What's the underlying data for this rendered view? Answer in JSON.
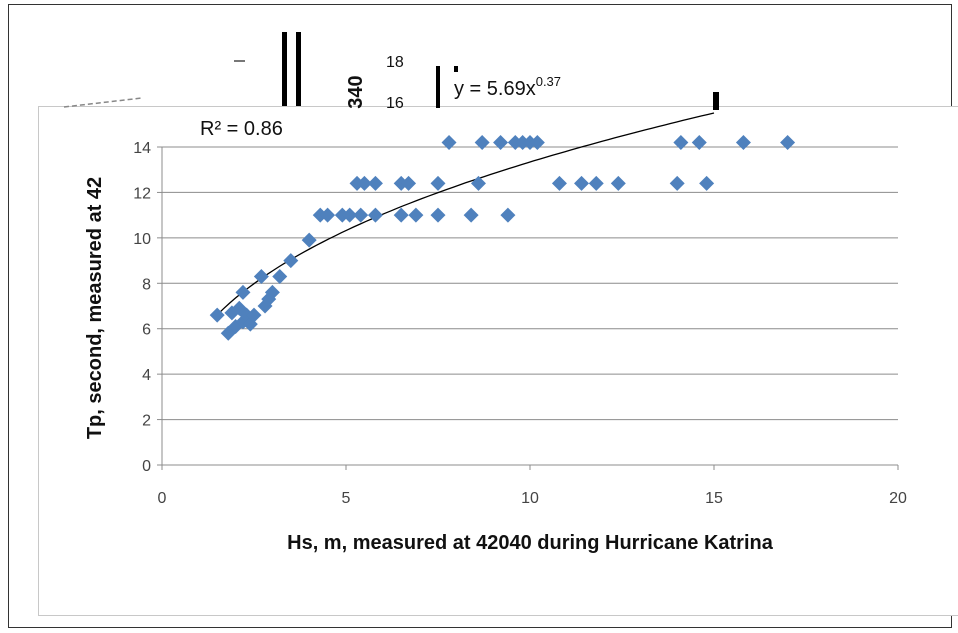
{
  "chart_data": {
    "type": "scatter",
    "title": "",
    "xlabel": "Hs, m, measured at 42040 during Hurricane Katrina",
    "ylabel": "Tp, second, measured at 42",
    "xlim": [
      0,
      20
    ],
    "ylim": [
      0,
      14
    ],
    "x_ticks": [
      "0",
      "5",
      "10",
      "15",
      "20"
    ],
    "y_ticks": [
      "0",
      "2",
      "4",
      "6",
      "8",
      "10",
      "12",
      "14"
    ],
    "grid": "horizontal",
    "legend": "none",
    "marker_color": "#4f81bd",
    "trendline_color": "#000000",
    "trendline": {
      "type": "power",
      "a": 5.69,
      "b": 0.37,
      "x_range": [
        1.5,
        15
      ]
    },
    "equation_prefix": "y = 5.69x",
    "equation_exponent": "0.37",
    "r_squared": "R² = 0.86",
    "stray_tick_labels": [
      "18",
      "16"
    ],
    "stray_fragment": "340",
    "points": [
      {
        "x": 1.5,
        "y": 6.6
      },
      {
        "x": 1.8,
        "y": 5.8
      },
      {
        "x": 1.9,
        "y": 6.7
      },
      {
        "x": 2.0,
        "y": 6.1
      },
      {
        "x": 2.1,
        "y": 6.9
      },
      {
        "x": 2.2,
        "y": 7.6
      },
      {
        "x": 2.2,
        "y": 6.3
      },
      {
        "x": 2.3,
        "y": 6.6
      },
      {
        "x": 2.4,
        "y": 6.2
      },
      {
        "x": 2.5,
        "y": 6.6
      },
      {
        "x": 2.7,
        "y": 8.3
      },
      {
        "x": 2.8,
        "y": 7.0
      },
      {
        "x": 2.9,
        "y": 7.3
      },
      {
        "x": 3.0,
        "y": 7.6
      },
      {
        "x": 3.2,
        "y": 8.3
      },
      {
        "x": 3.5,
        "y": 9.0
      },
      {
        "x": 4.0,
        "y": 9.9
      },
      {
        "x": 4.3,
        "y": 11.0
      },
      {
        "x": 4.5,
        "y": 11.0
      },
      {
        "x": 4.9,
        "y": 11.0
      },
      {
        "x": 5.1,
        "y": 11.0
      },
      {
        "x": 5.3,
        "y": 12.4
      },
      {
        "x": 5.4,
        "y": 11.0
      },
      {
        "x": 5.5,
        "y": 12.4
      },
      {
        "x": 5.8,
        "y": 12.4
      },
      {
        "x": 5.8,
        "y": 11.0
      },
      {
        "x": 6.5,
        "y": 12.4
      },
      {
        "x": 6.5,
        "y": 11.0
      },
      {
        "x": 6.7,
        "y": 12.4
      },
      {
        "x": 6.9,
        "y": 11.0
      },
      {
        "x": 7.5,
        "y": 12.4
      },
      {
        "x": 7.5,
        "y": 11.0
      },
      {
        "x": 7.8,
        "y": 14.2
      },
      {
        "x": 8.4,
        "y": 11.0
      },
      {
        "x": 8.6,
        "y": 12.4
      },
      {
        "x": 8.7,
        "y": 14.2
      },
      {
        "x": 9.2,
        "y": 14.2
      },
      {
        "x": 9.4,
        "y": 11.0
      },
      {
        "x": 9.6,
        "y": 14.2
      },
      {
        "x": 9.8,
        "y": 14.2
      },
      {
        "x": 10.0,
        "y": 14.2
      },
      {
        "x": 10.2,
        "y": 14.2
      },
      {
        "x": 10.8,
        "y": 12.4
      },
      {
        "x": 11.4,
        "y": 12.4
      },
      {
        "x": 11.8,
        "y": 12.4
      },
      {
        "x": 12.4,
        "y": 12.4
      },
      {
        "x": 14.0,
        "y": 12.4
      },
      {
        "x": 14.1,
        "y": 14.2
      },
      {
        "x": 14.6,
        "y": 14.2
      },
      {
        "x": 14.8,
        "y": 12.4
      },
      {
        "x": 15.8,
        "y": 14.2
      },
      {
        "x": 17.0,
        "y": 14.2
      }
    ]
  }
}
